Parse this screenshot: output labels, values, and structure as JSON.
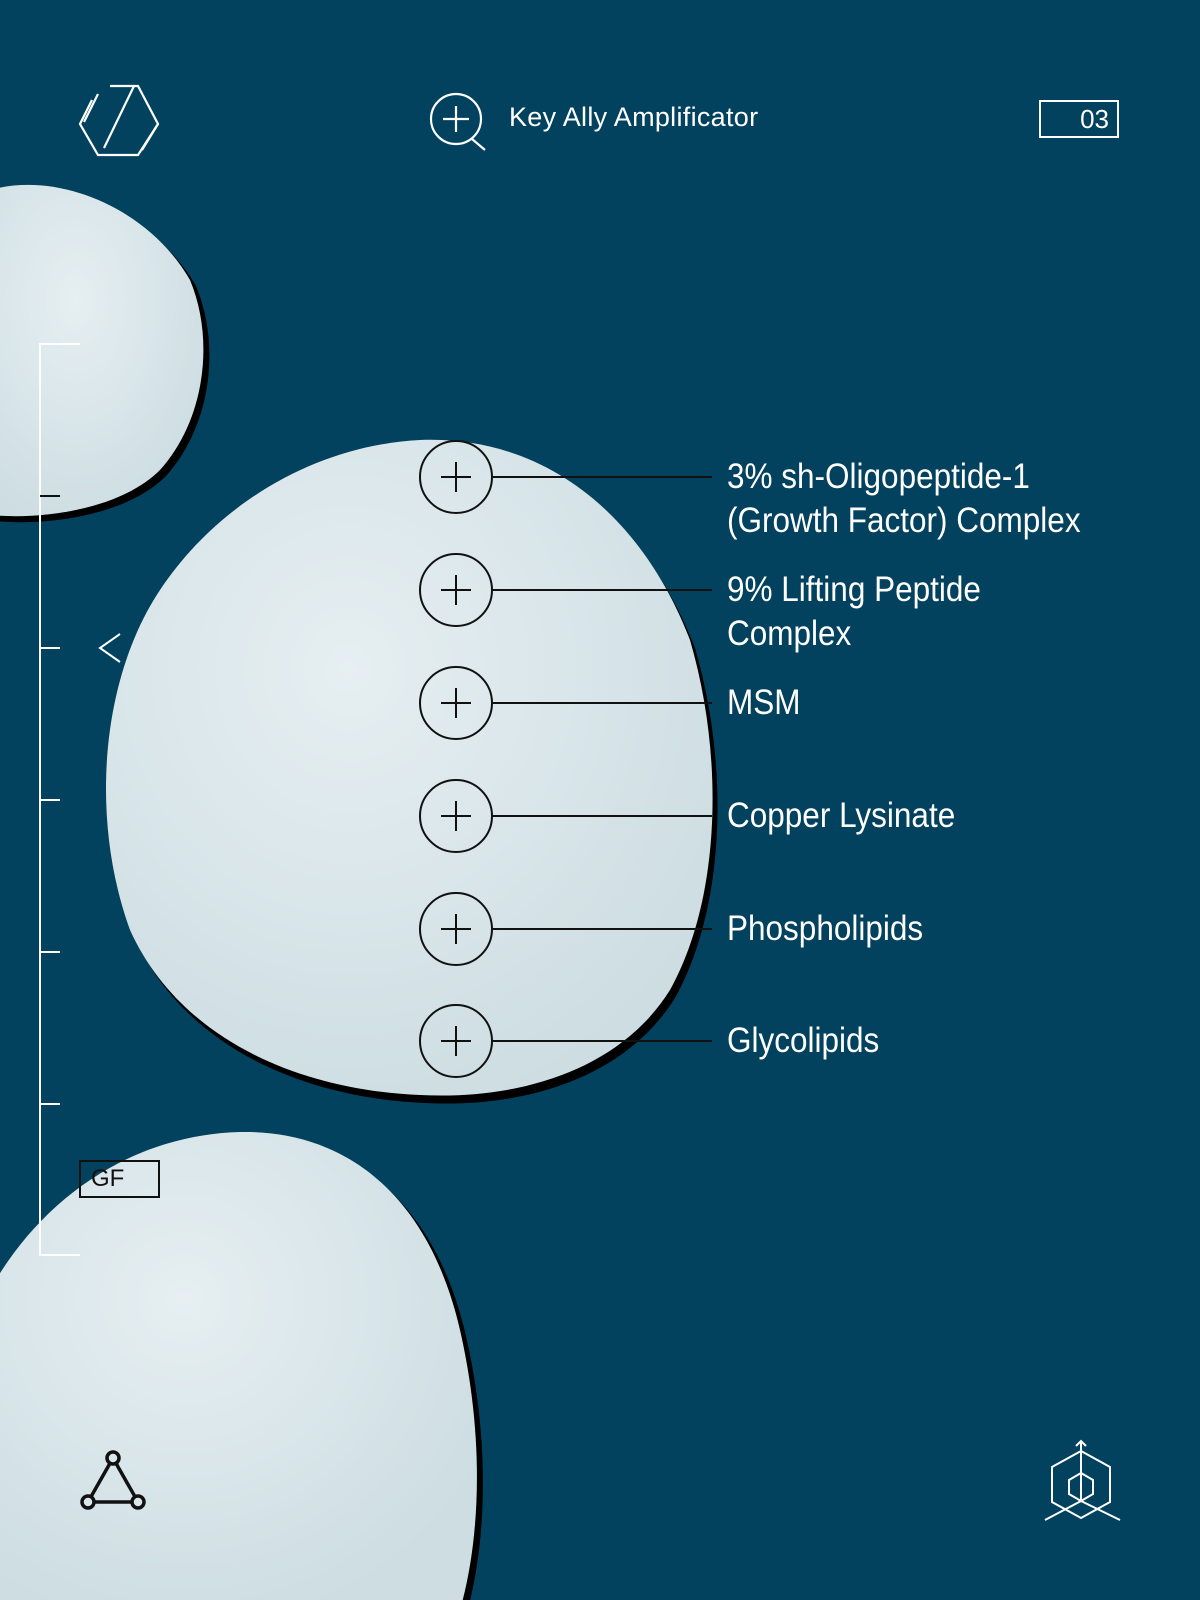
{
  "header": {
    "title": "Key Ally Amplificator",
    "page_number": "03",
    "logo_icon": "hexagon-slash-icon",
    "title_icon": "zoom-in-icon"
  },
  "sidebar": {
    "tag": "GF",
    "back_icon": "chevron-left-icon"
  },
  "ingredients": [
    {
      "label_line1": "3% sh-Oligopeptide-1",
      "label_line2": "(Growth Factor) Complex"
    },
    {
      "label_line1": "9% Lifting Peptide",
      "label_line2": "Complex"
    },
    {
      "label_line1": "MSM",
      "label_line2": ""
    },
    {
      "label_line1": "Copper Lysinate",
      "label_line2": ""
    },
    {
      "label_line1": "Phospholipids",
      "label_line2": ""
    },
    {
      "label_line1": "Glycolipids",
      "label_line2": ""
    }
  ],
  "footer": {
    "left_icon": "triangle-nodes-icon",
    "right_icon": "3d-cube-axes-icon"
  },
  "colors": {
    "background": "#02425e",
    "cream": "#d9e6ea",
    "line_white": "#ffffff",
    "line_dark": "#111111"
  }
}
